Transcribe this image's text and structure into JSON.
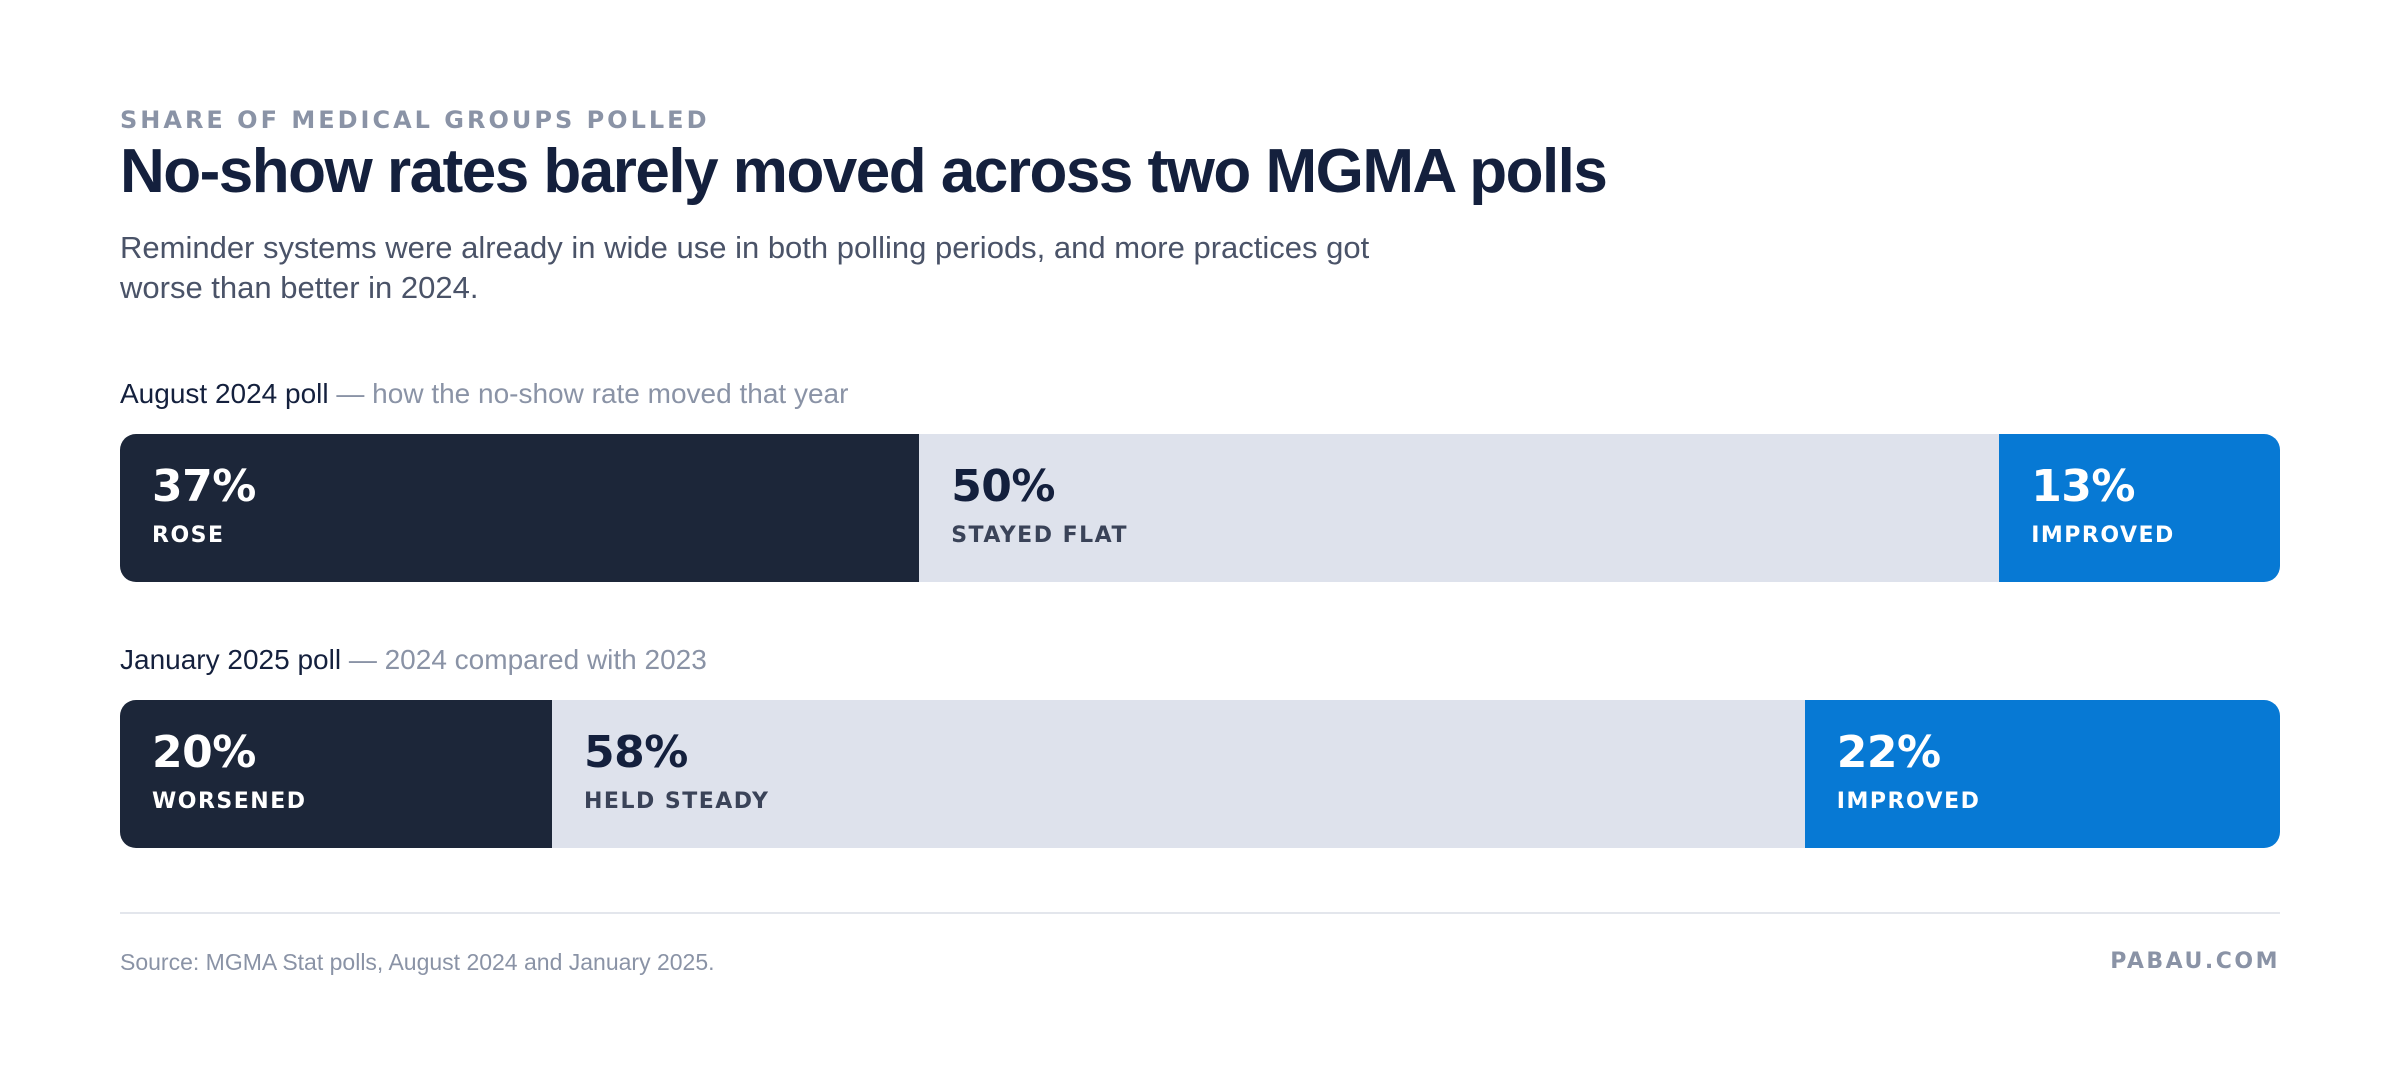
{
  "eyebrow": "SHARE OF MEDICAL GROUPS POLLED",
  "title": "No-show rates barely moved across two MGMA polls",
  "subtitle": "Reminder systems were already in wide use in both polling periods, and more practices got worse than better in 2024.",
  "footer": {
    "source": "Source: MGMA Stat polls, August 2024 and January 2025.",
    "brand": "PABAU.COM"
  },
  "colors": {
    "negative": "#1c2639",
    "neutral": "#dee2ec",
    "positive": "#0779d4",
    "text_on_dark": "#ffffff",
    "text_on_light": "#14203d",
    "label_on_light": "#3a4358"
  },
  "chart_data": [
    {
      "type": "bar",
      "stacked": true,
      "orientation": "horizontal",
      "title": "August 2024 poll",
      "note": "— how the no-show rate moved that year",
      "segments": [
        {
          "name": "ROSE",
          "value": 37,
          "display": "37%",
          "tone": "negative"
        },
        {
          "name": "STAYED FLAT",
          "value": 50,
          "display": "50%",
          "tone": "neutral"
        },
        {
          "name": "IMPROVED",
          "value": 13,
          "display": "13%",
          "tone": "positive"
        }
      ]
    },
    {
      "type": "bar",
      "stacked": true,
      "orientation": "horizontal",
      "title": "January 2025 poll",
      "note": "— 2024 compared with 2023",
      "segments": [
        {
          "name": "WORSENED",
          "value": 20,
          "display": "20%",
          "tone": "negative"
        },
        {
          "name": "HELD STEADY",
          "value": 58,
          "display": "58%",
          "tone": "neutral"
        },
        {
          "name": "IMPROVED",
          "value": 22,
          "display": "22%",
          "tone": "positive"
        }
      ]
    }
  ]
}
